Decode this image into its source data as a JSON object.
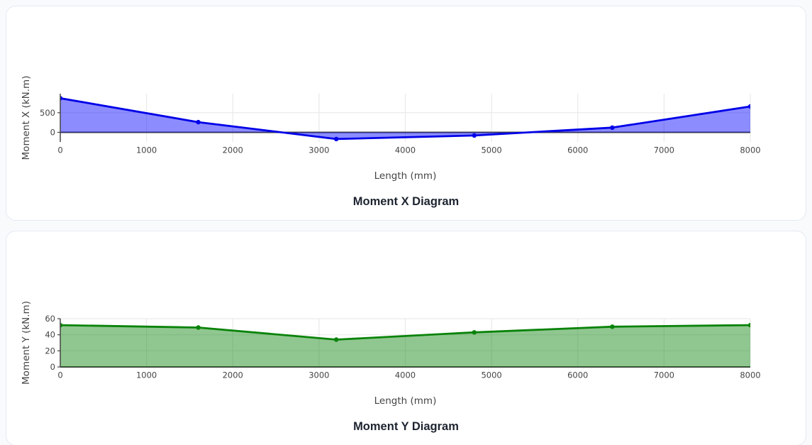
{
  "page": {
    "background": "#f8fafc",
    "card_background": "#ffffff",
    "card_border": "#e4eaf2"
  },
  "chart_data": [
    {
      "type": "area",
      "caption": "Moment X Diagram",
      "xlabel": "Length (mm)",
      "ylabel": "Moment X (kN.m)",
      "x": [
        0,
        1600,
        3200,
        4800,
        6400,
        8000
      ],
      "y": [
        870,
        260,
        -170,
        -80,
        120,
        660
      ],
      "xticks": [
        0,
        1000,
        2000,
        3000,
        4000,
        5000,
        6000,
        7000,
        8000
      ],
      "yticks": [
        0,
        500
      ],
      "xlim": [
        0,
        8000
      ],
      "ylim": [
        -245,
        985
      ],
      "grid": true,
      "legend": false,
      "line_color": "#0000e8",
      "fill_color": "rgba(0,0,255,0.45)",
      "marker_color": "#0000e8",
      "zeroline_color": "#444444",
      "grid_color": "#e9e9e9",
      "tick_color": "#444444"
    },
    {
      "type": "area",
      "caption": "Moment Y Diagram",
      "xlabel": "Length (mm)",
      "ylabel": "Moment Y (kN.m)",
      "x": [
        0,
        1600,
        3200,
        4800,
        6400,
        8000
      ],
      "y": [
        52,
        49,
        34,
        43,
        50,
        52
      ],
      "xticks": [
        0,
        1000,
        2000,
        3000,
        4000,
        5000,
        6000,
        7000,
        8000
      ],
      "yticks": [
        0,
        20,
        40,
        60
      ],
      "xlim": [
        0,
        8000
      ],
      "ylim": [
        0,
        60
      ],
      "grid": true,
      "legend": false,
      "line_color": "#0a830a",
      "fill_color": "rgba(8,130,8,0.45)",
      "marker_color": "#0a830a",
      "zeroline_color": "#444444",
      "grid_color": "#e9e9e9",
      "tick_color": "#444444"
    }
  ]
}
